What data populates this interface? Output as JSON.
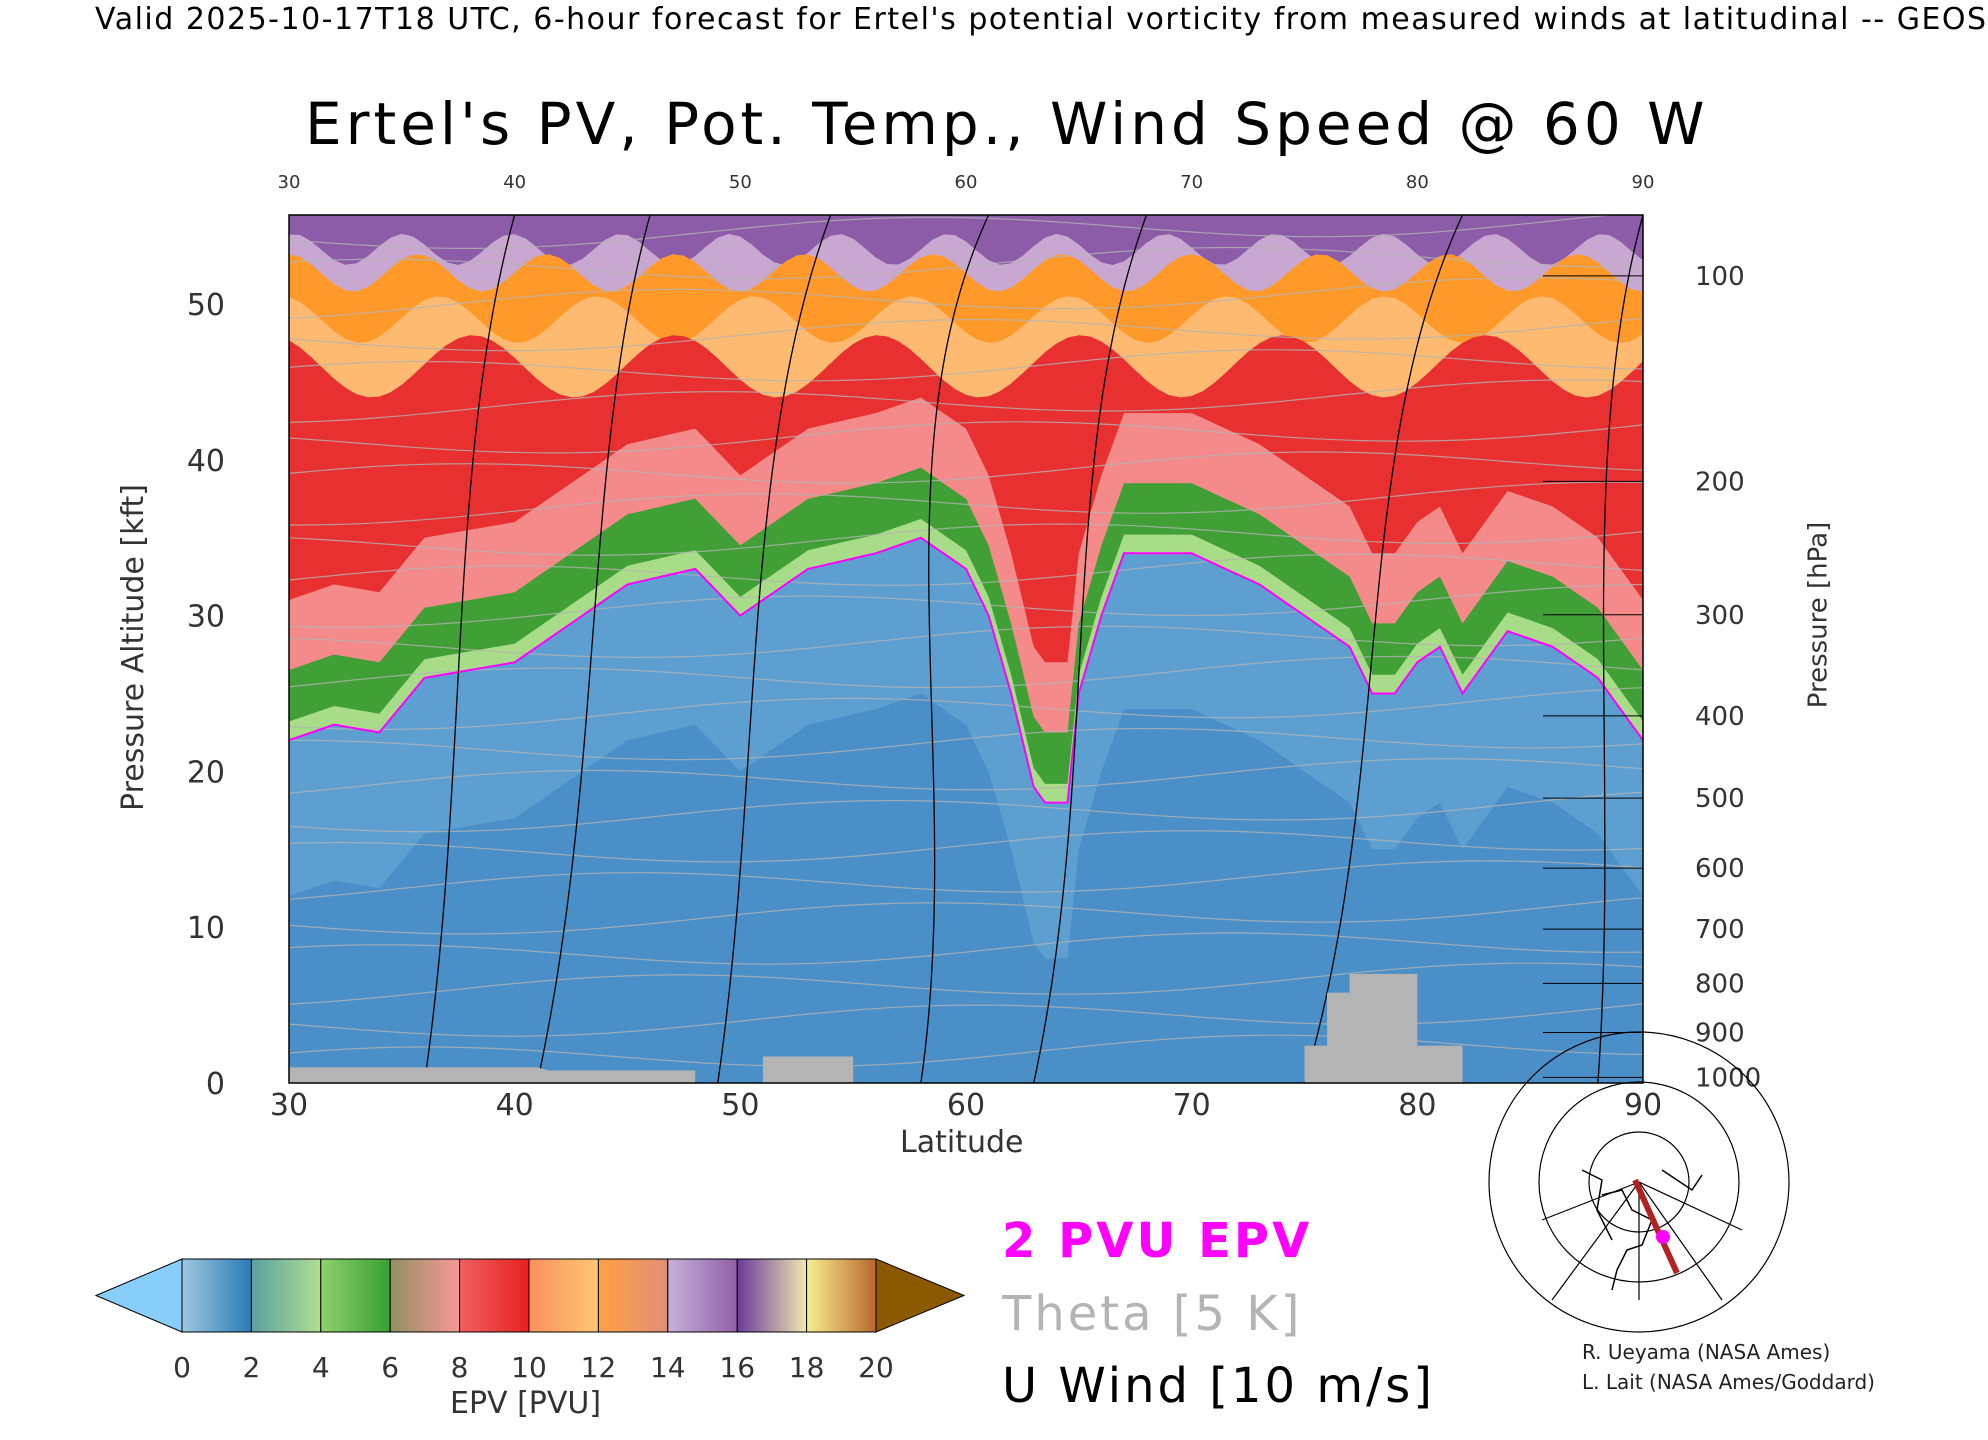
{
  "header": {
    "top_line": "Valid 2025-10-17T18 UTC, 6-hour forecast for Ertel's potential vorticity from measured winds at latitudinal -- GEOS",
    "title": "Ertel's PV, Pot. Temp., Wind Speed @ 60 W"
  },
  "chart_data": {
    "type": "heatmap",
    "title": "Ertel's PV, Pot. Temp., Wind Speed @ 60 W",
    "xlabel": "Latitude",
    "ylabel": "Pressure Altitude [kft]",
    "y2label": "Pressure [hPa]",
    "xlim": [
      30,
      90
    ],
    "ylim": [
      0,
      55.7
    ],
    "x_ticks": [
      "30",
      "40",
      "50",
      "60",
      "70",
      "80",
      "90"
    ],
    "x_tick_values": [
      30,
      40,
      50,
      60,
      70,
      80,
      90
    ],
    "y_ticks": [
      "0",
      "10",
      "20",
      "30",
      "40",
      "50"
    ],
    "y_tick_values": [
      0,
      10,
      20,
      30,
      40,
      50
    ],
    "pressure_ticks": [
      "100",
      "200",
      "300",
      "400",
      "500",
      "600",
      "700",
      "800",
      "900",
      "1000"
    ],
    "pressure_tick_values": [
      100,
      200,
      300,
      400,
      500,
      600,
      700,
      800,
      900,
      1000
    ],
    "tropopause_2pvu": {
      "lat": [
        30,
        32,
        34,
        36,
        40,
        42,
        45,
        48,
        50,
        53,
        56,
        58,
        60,
        61,
        62,
        63,
        63.5,
        64.5,
        65,
        66,
        67,
        70,
        73,
        75,
        77,
        78,
        79,
        80,
        81,
        82,
        84,
        86,
        88,
        90
      ],
      "kft": [
        22,
        23,
        22.5,
        26,
        27,
        29,
        32,
        33,
        30,
        33,
        34,
        35,
        33,
        30,
        25,
        19,
        18,
        18,
        25,
        30,
        34,
        34,
        32,
        30,
        28,
        25,
        25,
        27,
        28,
        25,
        29,
        28,
        26,
        22
      ]
    },
    "terrain": {
      "lat": [
        30,
        41,
        41.5,
        48,
        48,
        51,
        51,
        55,
        55,
        75,
        75,
        76,
        76,
        77,
        77,
        80,
        80,
        82,
        82,
        90
      ],
      "kft": [
        1,
        1,
        0.8,
        0.8,
        0,
        0,
        1.7,
        1.7,
        0,
        0,
        2.4,
        2.4,
        5.8,
        5.8,
        7,
        7,
        2.4,
        2.4,
        0,
        0
      ]
    },
    "colorbar": {
      "label": "EPV [PVU]",
      "ticks": [
        "0",
        "2",
        "4",
        "6",
        "8",
        "10",
        "12",
        "14",
        "16",
        "18",
        "20"
      ],
      "levels": [
        0,
        2,
        4,
        6,
        8,
        10,
        12,
        14,
        16,
        18,
        20
      ],
      "segment_colors": [
        [
          "#9ec8e0",
          "#2a7bb5"
        ],
        [
          "#5aa0a0",
          "#b0e090"
        ],
        [
          "#90d070",
          "#38a030"
        ],
        [
          "#909060",
          "#f89898"
        ],
        [
          "#f06060",
          "#e82020"
        ],
        [
          "#f89060",
          "#fec870"
        ],
        [
          "#ffa040",
          "#e09078"
        ],
        [
          "#c8b0d8",
          "#9060a8"
        ],
        [
          "#6a3a98",
          "#f0e8b0"
        ],
        [
          "#f8f090",
          "#b86830"
        ]
      ],
      "under_color": "#87cefa",
      "over_color": "#8b5a00"
    },
    "legend": {
      "pv_label": "2 PVU EPV",
      "theta_label": "Theta [5 K]",
      "wind_label": "U Wind [10 m/s]",
      "pv_color": "#ff00ff",
      "theta_color": "#b4b4b4",
      "wind_color": "#000000"
    }
  },
  "credits": {
    "line1": "R. Ueyama (NASA Ames)",
    "line2": "L. Lait (NASA Ames/Goddard)"
  }
}
